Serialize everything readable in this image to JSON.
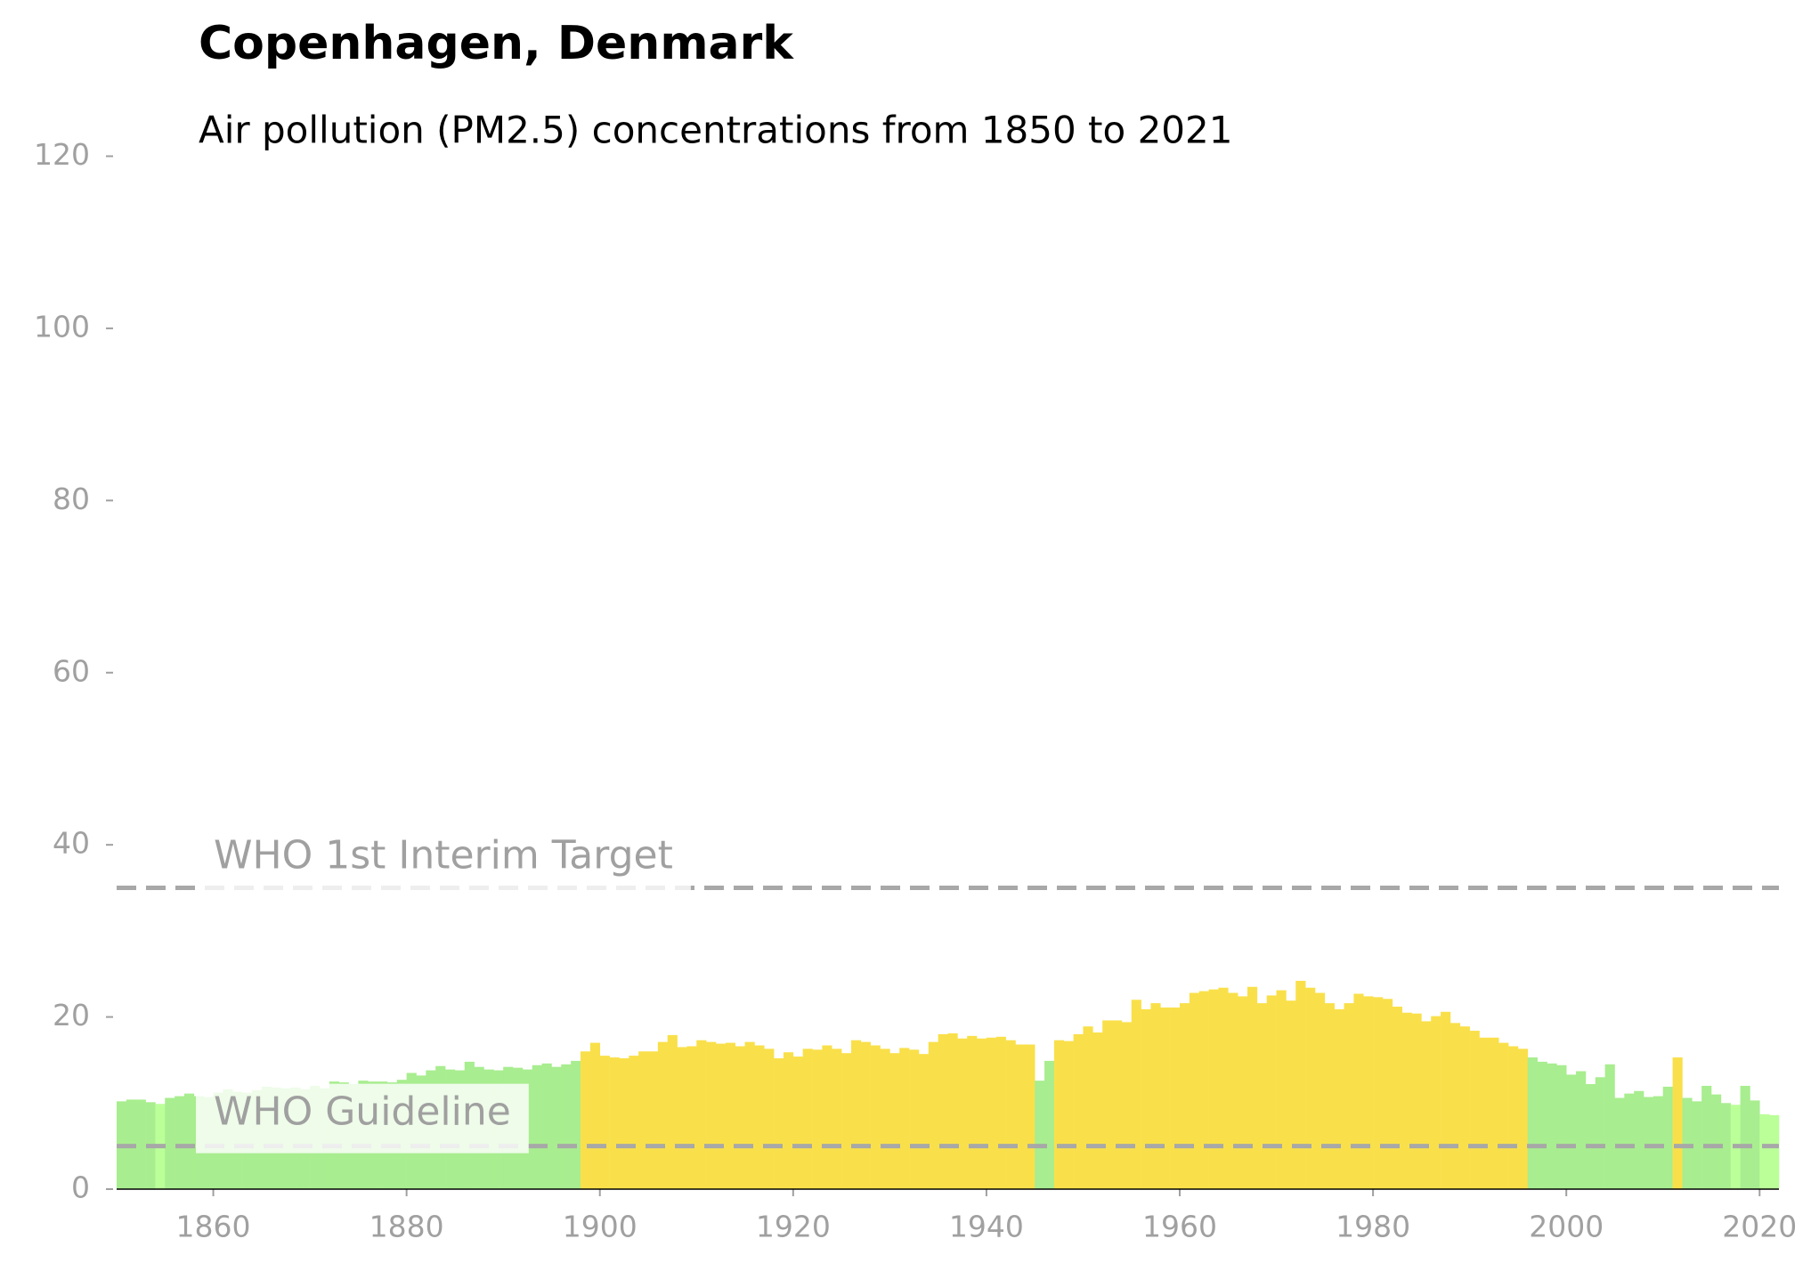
{
  "chart_data": {
    "type": "bar",
    "title": "Copenhagen, Denmark",
    "subtitle": "Air pollution (PM2.5) concentrations from 1850 to 2021",
    "x": [
      1850,
      1851,
      1852,
      1853,
      1854,
      1855,
      1856,
      1857,
      1858,
      1859,
      1860,
      1861,
      1862,
      1863,
      1864,
      1865,
      1866,
      1867,
      1868,
      1869,
      1870,
      1871,
      1872,
      1873,
      1874,
      1875,
      1876,
      1877,
      1878,
      1879,
      1880,
      1881,
      1882,
      1883,
      1884,
      1885,
      1886,
      1887,
      1888,
      1889,
      1890,
      1891,
      1892,
      1893,
      1894,
      1895,
      1896,
      1897,
      1898,
      1899,
      1900,
      1901,
      1902,
      1903,
      1904,
      1905,
      1906,
      1907,
      1908,
      1909,
      1910,
      1911,
      1912,
      1913,
      1914,
      1915,
      1916,
      1917,
      1918,
      1919,
      1920,
      1921,
      1922,
      1923,
      1924,
      1925,
      1926,
      1927,
      1928,
      1929,
      1930,
      1931,
      1932,
      1933,
      1934,
      1935,
      1936,
      1937,
      1938,
      1939,
      1940,
      1941,
      1942,
      1943,
      1944,
      1945,
      1946,
      1947,
      1948,
      1949,
      1950,
      1951,
      1952,
      1953,
      1954,
      1955,
      1956,
      1957,
      1958,
      1959,
      1960,
      1961,
      1962,
      1963,
      1964,
      1965,
      1966,
      1967,
      1968,
      1969,
      1970,
      1971,
      1972,
      1973,
      1974,
      1975,
      1976,
      1977,
      1978,
      1979,
      1980,
      1981,
      1982,
      1983,
      1984,
      1985,
      1986,
      1987,
      1988,
      1989,
      1990,
      1991,
      1992,
      1993,
      1994,
      1995,
      1996,
      1997,
      1998,
      1999,
      2000,
      2001,
      2002,
      2003,
      2004,
      2005,
      2006,
      2007,
      2008,
      2009,
      2010,
      2011,
      2012,
      2013,
      2014,
      2015,
      2016,
      2017,
      2018,
      2019,
      2020,
      2021
    ],
    "values": [
      10.2,
      10.4,
      10.4,
      10.1,
      9.9,
      10.6,
      10.8,
      11.1,
      10.8,
      10.7,
      11.2,
      11.6,
      11.3,
      11.2,
      11.5,
      11.9,
      11.8,
      11.7,
      11.8,
      11.6,
      12.0,
      11.7,
      12.5,
      12.4,
      12.2,
      12.6,
      12.5,
      12.5,
      12.4,
      12.7,
      13.5,
      13.2,
      13.8,
      14.3,
      13.9,
      13.8,
      14.8,
      14.2,
      13.9,
      13.8,
      14.2,
      14.1,
      13.9,
      14.4,
      14.6,
      14.2,
      14.5,
      14.9,
      16.0,
      17.0,
      15.5,
      15.3,
      15.2,
      15.5,
      16.0,
      16.0,
      17.1,
      17.9,
      16.5,
      16.6,
      17.3,
      17.1,
      16.9,
      17.0,
      16.6,
      17.1,
      16.7,
      16.3,
      15.2,
      15.9,
      15.4,
      16.3,
      16.2,
      16.7,
      16.3,
      15.8,
      17.3,
      17.1,
      16.7,
      16.3,
      15.8,
      16.4,
      16.2,
      15.7,
      17.1,
      18.0,
      18.1,
      17.5,
      17.8,
      17.5,
      17.6,
      17.7,
      17.3,
      16.8,
      16.8,
      12.6,
      14.9,
      17.3,
      17.2,
      18.0,
      18.9,
      18.2,
      19.6,
      19.6,
      19.4,
      22.0,
      20.9,
      21.6,
      21.1,
      21.1,
      21.6,
      22.8,
      23.0,
      23.2,
      23.4,
      22.8,
      22.4,
      23.5,
      21.6,
      22.5,
      23.1,
      21.9,
      24.2,
      23.4,
      22.8,
      21.6,
      20.9,
      21.6,
      22.7,
      22.4,
      22.3,
      22.1,
      21.2,
      20.5,
      20.4,
      19.5,
      20.1,
      20.6,
      19.3,
      18.9,
      18.4,
      17.6,
      17.6,
      17.0,
      16.6,
      16.3,
      15.3,
      14.8,
      14.6,
      14.4,
      13.3,
      13.7,
      12.2,
      13.0,
      14.5,
      10.6,
      11.1,
      11.4,
      10.7,
      10.8,
      11.9,
      15.3,
      10.6,
      10.2,
      12.0,
      11.0,
      10.0,
      9.8,
      12.0,
      10.3,
      8.7,
      8.6
    ],
    "colors": [
      "#a8ed8f",
      "#a8ed8f",
      "#a8ed8f",
      "#a8ed8f",
      "#bbff99",
      "#a8ed8f",
      "#a8ed8f",
      "#a8ed8f",
      "#a8ed8f",
      "#a8ed8f",
      "#a8ed8f",
      "#a8ed8f",
      "#a8ed8f",
      "#a8ed8f",
      "#a8ed8f",
      "#a8ed8f",
      "#a8ed8f",
      "#a8ed8f",
      "#a8ed8f",
      "#a8ed8f",
      "#a8ed8f",
      "#a8ed8f",
      "#a8ed8f",
      "#a8ed8f",
      "#a8ed8f",
      "#a8ed8f",
      "#a8ed8f",
      "#a8ed8f",
      "#a8ed8f",
      "#a8ed8f",
      "#a8ed8f",
      "#a8ed8f",
      "#a8ed8f",
      "#a8ed8f",
      "#a8ed8f",
      "#a8ed8f",
      "#a8ed8f",
      "#a8ed8f",
      "#a8ed8f",
      "#a8ed8f",
      "#a8ed8f",
      "#a8ed8f",
      "#a8ed8f",
      "#a8ed8f",
      "#a8ed8f",
      "#a8ed8f",
      "#a8ed8f",
      "#a8ed8f",
      "#f9e04a",
      "#f9e04a",
      "#f9e04a",
      "#f9e04a",
      "#f9e04a",
      "#f9e04a",
      "#f9e04a",
      "#f9e04a",
      "#f9e04a",
      "#f9e04a",
      "#f9e04a",
      "#f9e04a",
      "#f9e04a",
      "#f9e04a",
      "#f9e04a",
      "#f9e04a",
      "#f9e04a",
      "#f9e04a",
      "#f9e04a",
      "#f9e04a",
      "#f9e04a",
      "#f9e04a",
      "#f9e04a",
      "#f9e04a",
      "#f9e04a",
      "#f9e04a",
      "#f9e04a",
      "#f9e04a",
      "#f9e04a",
      "#f9e04a",
      "#f9e04a",
      "#f9e04a",
      "#f9e04a",
      "#f9e04a",
      "#f9e04a",
      "#f9e04a",
      "#f9e04a",
      "#f9e04a",
      "#f9e04a",
      "#f9e04a",
      "#f9e04a",
      "#f9e04a",
      "#f9e04a",
      "#f9e04a",
      "#f9e04a",
      "#f9e04a",
      "#f9e04a",
      "#a8ed8f",
      "#a8ed8f",
      "#f9e04a",
      "#f9e04a",
      "#f9e04a",
      "#f9e04a",
      "#f9e04a",
      "#f9e04a",
      "#f9e04a",
      "#f9e04a",
      "#f9e04a",
      "#f9e04a",
      "#f9e04a",
      "#f9e04a",
      "#f9e04a",
      "#f9e04a",
      "#f9e04a",
      "#f9e04a",
      "#f9e04a",
      "#f9e04a",
      "#f9e04a",
      "#f9e04a",
      "#f9e04a",
      "#f9e04a",
      "#f9e04a",
      "#f9e04a",
      "#f9e04a",
      "#f9e04a",
      "#f9e04a",
      "#f9e04a",
      "#f9e04a",
      "#f9e04a",
      "#f9e04a",
      "#f9e04a",
      "#f9e04a",
      "#f9e04a",
      "#f9e04a",
      "#f9e04a",
      "#f9e04a",
      "#f9e04a",
      "#f9e04a",
      "#f9e04a",
      "#f9e04a",
      "#f9e04a",
      "#f9e04a",
      "#f9e04a",
      "#f9e04a",
      "#f9e04a",
      "#f9e04a",
      "#f9e04a",
      "#f9e04a",
      "#a8ed8f",
      "#a8ed8f",
      "#a8ed8f",
      "#a8ed8f",
      "#a8ed8f",
      "#a8ed8f",
      "#a8ed8f",
      "#a8ed8f",
      "#a8ed8f",
      "#a8ed8f",
      "#a8ed8f",
      "#a8ed8f",
      "#a8ed8f",
      "#a8ed8f",
      "#a8ed8f",
      "#f9e04a",
      "#a8ed8f",
      "#a8ed8f",
      "#a8ed8f",
      "#a8ed8f",
      "#a8ed8f",
      "#bbff99",
      "#a8ed8f",
      "#a8ed8f",
      "#bbff99",
      "#bbff99"
    ],
    "xlim": [
      1850,
      2022
    ],
    "xticks": [
      1860,
      1880,
      1900,
      1920,
      1940,
      1960,
      1980,
      2000,
      2020
    ],
    "ylim": [
      0,
      120
    ],
    "yticks": [
      0,
      20,
      40,
      60,
      80,
      100,
      120
    ],
    "reference_lines": [
      {
        "value": 35,
        "label": "WHO 1st Interim Target"
      },
      {
        "value": 5,
        "label": "WHO Guideline"
      }
    ]
  }
}
